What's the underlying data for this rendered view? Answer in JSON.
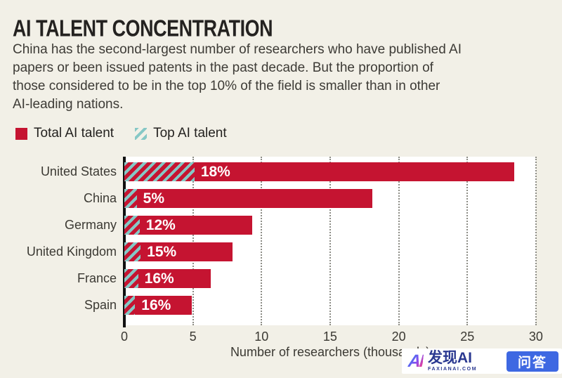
{
  "title": "AI TALENT CONCENTRATION",
  "subtitle_lines": [
    "China has the second-largest number of researchers who have published AI",
    "papers or been issued patents in the past decade. But the proportion of",
    "those considered to be in the top 10% of the field is smaller than in other",
    "AI-leading nations."
  ],
  "legend": {
    "items": [
      {
        "label": "Total AI talent",
        "swatch": "red-solid"
      },
      {
        "label": "Top AI talent",
        "swatch": "teal-hatch"
      }
    ]
  },
  "colors": {
    "background": "#f2f0e7",
    "plot_background": "#ffffff",
    "bar_red": "#c51431",
    "hatch_teal": "#86c8c6",
    "axis_black": "#111111",
    "gridline_gray": "#8d8d86",
    "title_text": "#242220",
    "body_text": "#3d3b36",
    "watermark_badge_blue": "#3e68e2",
    "watermark_navy": "#2a3890"
  },
  "chart_data": {
    "type": "bar",
    "orientation": "horizontal",
    "title": "AI TALENT CONCENTRATION",
    "categories": [
      "United States",
      "China",
      "Germany",
      "United Kingdom",
      "France",
      "Spain"
    ],
    "series": [
      {
        "name": "Total AI talent",
        "unit": "thousands of researchers",
        "values": [
          28.4,
          18.1,
          9.3,
          7.9,
          6.3,
          4.9
        ]
      },
      {
        "name": "Top AI talent",
        "unit": "percent of total",
        "values": [
          18,
          5,
          12,
          15,
          16,
          16
        ]
      }
    ],
    "bar_labels": [
      "18%",
      "5%",
      "12%",
      "15%",
      "16%",
      "16%"
    ],
    "xlabel": "Number of researchers (thousands)",
    "x_ticks": [
      "0",
      "5",
      "10",
      "15",
      "20",
      "25",
      "30"
    ],
    "xlim": [
      0,
      30
    ],
    "grid": "vertical-dotted",
    "legend_position": "top-left"
  },
  "watermark": {
    "logo_text": "AI",
    "brand_text": "发现AI",
    "brand_sub": "FAXIANAI.COM",
    "badge_text": "问答"
  }
}
